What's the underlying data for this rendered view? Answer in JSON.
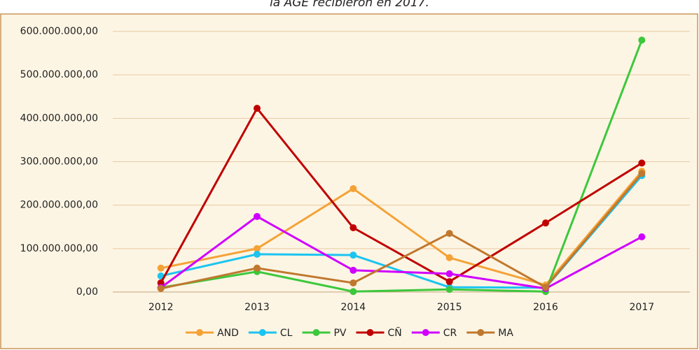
{
  "chart_data": {
    "type": "line",
    "title": "la AGE recibieron en 2017.",
    "categories": [
      "2012",
      "2013",
      "2014",
      "2015",
      "2016",
      "2017"
    ],
    "series": [
      {
        "name": "AND",
        "color": "#f4a236",
        "values": [
          55000000,
          100000000,
          238000000,
          79000000,
          16000000,
          278000000
        ]
      },
      {
        "name": "CL",
        "color": "#1cc4f0",
        "values": [
          37000000,
          87000000,
          85000000,
          11000000,
          10000000,
          268000000
        ]
      },
      {
        "name": "PV",
        "color": "#3cc83c",
        "values": [
          10000000,
          47000000,
          1000000,
          6000000,
          1000000,
          580000000
        ]
      },
      {
        "name": "CÑ",
        "color": "#c00000",
        "values": [
          21000000,
          423000000,
          148000000,
          24000000,
          159000000,
          297000000
        ]
      },
      {
        "name": "CR",
        "color": "#d000ff",
        "values": [
          10000000,
          174000000,
          50000000,
          42000000,
          8000000,
          127000000
        ]
      },
      {
        "name": "MA",
        "color": "#c0782e",
        "values": [
          8000000,
          55000000,
          21000000,
          135000000,
          11000000,
          273000000
        ]
      }
    ],
    "ylim": [
      0,
      600000000
    ],
    "yticks": [
      {
        "value": 0,
        "label": "0,00"
      },
      {
        "value": 100000000,
        "label": "100.000.000,00"
      },
      {
        "value": 200000000,
        "label": "200.000.000,00"
      },
      {
        "value": 300000000,
        "label": "300.000.000,00"
      },
      {
        "value": 400000000,
        "label": "400.000.000,00"
      },
      {
        "value": 500000000,
        "label": "500.000.000,00"
      },
      {
        "value": 600000000,
        "label": "600.000.000,00"
      }
    ],
    "grid": true,
    "legend": "bottom"
  }
}
